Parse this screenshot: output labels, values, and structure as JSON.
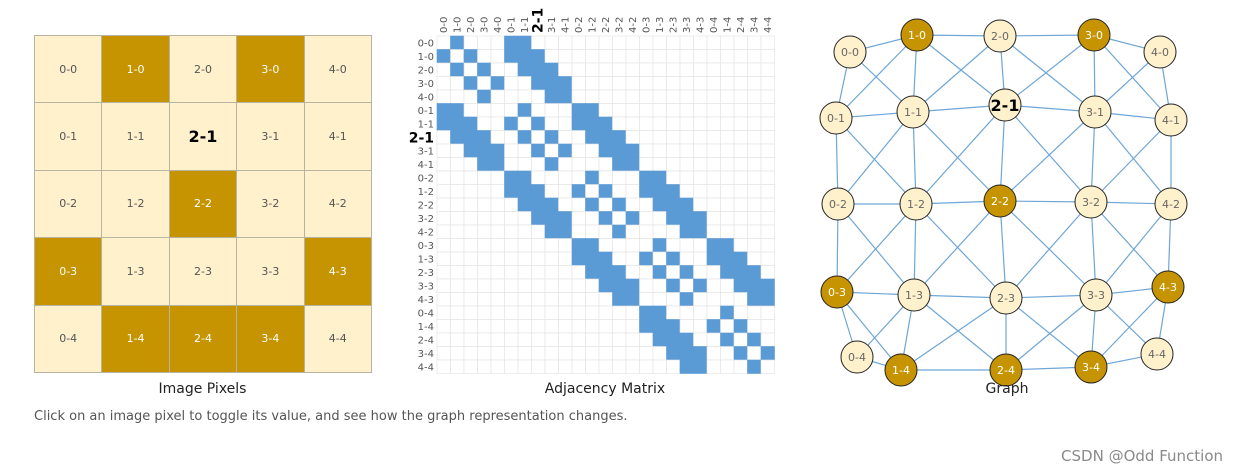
{
  "grid": {
    "size": 5,
    "highlight": "2-1",
    "on_pixels": [
      "1-0",
      "3-0",
      "2-2",
      "0-3",
      "4-3",
      "1-4",
      "2-4",
      "3-4"
    ]
  },
  "labels": {
    "image_caption": "Image Pixels",
    "matrix_caption": "Adjacency Matrix",
    "graph_caption": "Graph",
    "hint": "Click on an image pixel to toggle its value, and see how the graph representation changes.",
    "watermark": "CSDN @Odd Function"
  },
  "colors": {
    "pixel_on": "#c59400",
    "pixel_off": "#fff1cc",
    "matrix_fill": "#5b9bd5",
    "edge": "#6ea6d6"
  }
}
